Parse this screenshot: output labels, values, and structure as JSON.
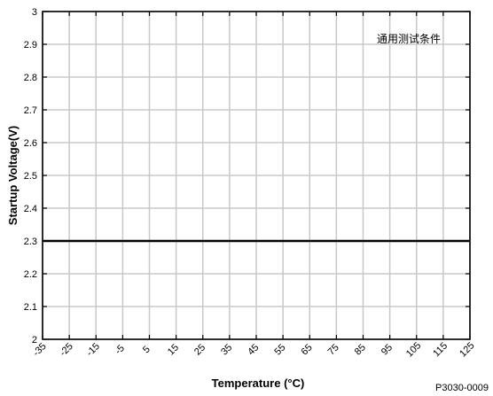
{
  "chart_data": {
    "type": "line",
    "title": "",
    "xlabel": "Temperature (°C)",
    "ylabel": "Startup Voltage(V)",
    "xlim": [
      -35,
      125
    ],
    "ylim": [
      2,
      3
    ],
    "x_ticks": [
      -35,
      -25,
      -15,
      -5,
      5,
      15,
      25,
      35,
      45,
      55,
      65,
      75,
      85,
      95,
      105,
      115,
      125
    ],
    "y_ticks": [
      2,
      2.1,
      2.2,
      2.3,
      2.4,
      2.5,
      2.6,
      2.7,
      2.8,
      2.9,
      3
    ],
    "x_tick_labels": [
      "-35",
      "-25",
      "-15",
      "-5",
      "5",
      "15",
      "25",
      "35",
      "45",
      "55",
      "65",
      "75",
      "85",
      "95",
      "105",
      "115",
      "125"
    ],
    "y_tick_labels": [
      "2",
      "2.1",
      "2.2",
      "2.3",
      "2.4",
      "2.5",
      "2.6",
      "2.7",
      "2.8",
      "2.9",
      "3"
    ],
    "grid": true,
    "series": [
      {
        "x": [
          -35,
          125
        ],
        "y": [
          2.3,
          2.3
        ],
        "color": "#000000"
      }
    ],
    "annotation": "通用测试条件",
    "figure_code": "P3030-0009"
  }
}
